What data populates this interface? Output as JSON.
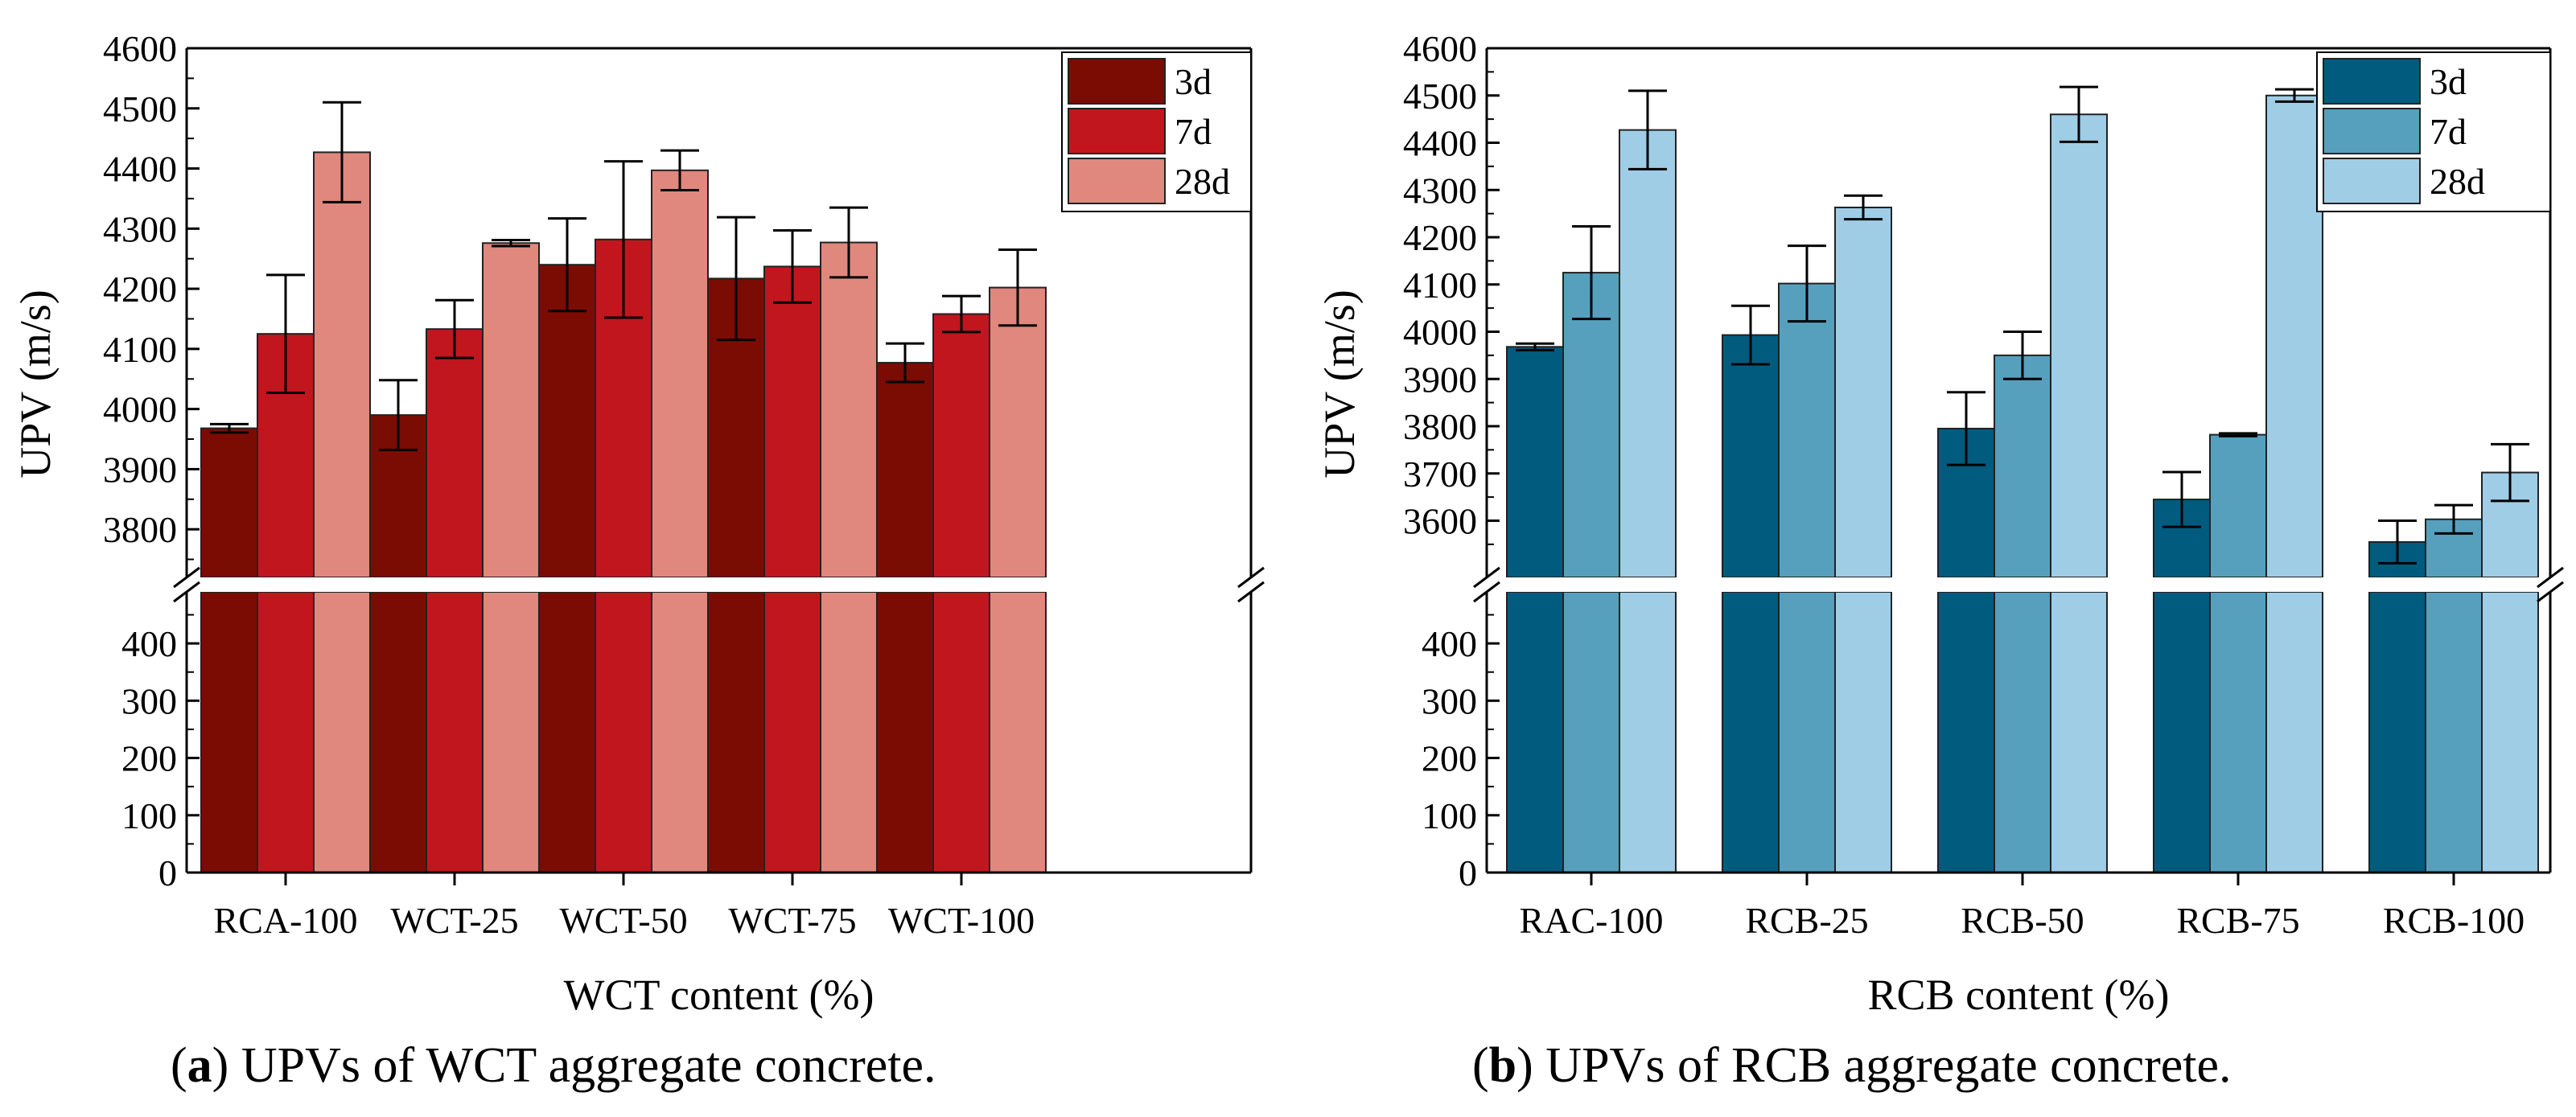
{
  "chart_data": [
    {
      "type": "bar",
      "panel_letter": "a",
      "caption": "UPVs of WCT aggregate concrete.",
      "xlabel": "WCT content (%)",
      "ylabel": "UPV (m/s)",
      "categories": [
        "RCA-100",
        "WCT-25",
        "WCT-50",
        "WCT-75",
        "WCT-100"
      ],
      "series": [
        {
          "name": "3d",
          "color": "#7b0c04",
          "values": [
            3968,
            3990,
            4240,
            4217,
            4077
          ],
          "errors": [
            7,
            58,
            77,
            102,
            32
          ]
        },
        {
          "name": "7d",
          "color": "#c2161f",
          "values": [
            4125,
            4133,
            4282,
            4237,
            4158
          ],
          "errors": [
            98,
            48,
            130,
            60,
            30
          ]
        },
        {
          "name": "28d",
          "color": "#e0877e",
          "values": [
            4427,
            4276,
            4397,
            4277,
            4202
          ],
          "errors": [
            83,
            5,
            33,
            58,
            63
          ]
        }
      ],
      "axis_break": {
        "lower_range": [
          0,
          490
        ],
        "upper_range": [
          3720,
          4600
        ]
      },
      "yticks_lower": [
        0,
        100,
        200,
        300,
        400
      ],
      "yticks_upper": [
        3800,
        3900,
        4000,
        4100,
        4200,
        4300,
        4400,
        4500,
        4600
      ],
      "legend": "top-right"
    },
    {
      "type": "bar",
      "panel_letter": "b",
      "caption": "UPVs of RCB aggregate concrete.",
      "xlabel": "RCB content (%)",
      "ylabel": "UPV (m/s)",
      "categories": [
        "RAC-100",
        "RCB-25",
        "RCB-50",
        "RCB-75",
        "RCB-100"
      ],
      "series": [
        {
          "name": "3d",
          "color": "#005b7f",
          "values": [
            3968,
            3993,
            3795,
            3645,
            3555
          ],
          "errors": [
            7,
            62,
            77,
            58,
            45
          ]
        },
        {
          "name": "7d",
          "color": "#56a0be",
          "values": [
            4125,
            4102,
            3950,
            3782,
            3603
          ],
          "errors": [
            98,
            80,
            50,
            3,
            30
          ]
        },
        {
          "name": "28d",
          "color": "#9fcde6",
          "values": [
            4427,
            4263,
            4460,
            4500,
            3702
          ],
          "errors": [
            83,
            25,
            58,
            13,
            60
          ]
        }
      ],
      "axis_break": {
        "lower_range": [
          0,
          490
        ],
        "upper_range": [
          3480,
          4600
        ]
      },
      "yticks_lower": [
        0,
        100,
        200,
        300,
        400
      ],
      "yticks_upper": [
        3600,
        3700,
        3800,
        3900,
        4000,
        4100,
        4200,
        4300,
        4400,
        4500,
        4600
      ],
      "legend": "top-right"
    }
  ]
}
